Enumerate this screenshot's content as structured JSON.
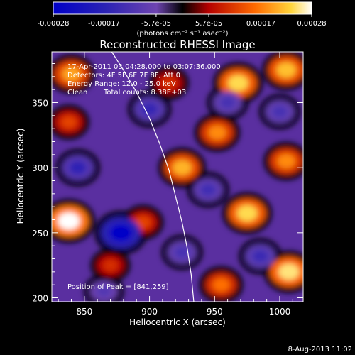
{
  "colorbar": {
    "ticks": [
      "-0.00028",
      "-0.00017",
      "-5.7e-05",
      "5.7e-05",
      "0.00017",
      "0.00028"
    ],
    "values": [
      -0.00028,
      -0.00017,
      -5.7e-05,
      5.7e-05,
      0.00017,
      0.00028
    ],
    "range": [
      -0.00028,
      0.00028
    ],
    "units": "(photons cm⁻² s⁻¹ asec⁻²)"
  },
  "chart_data": {
    "type": "heatmap",
    "title": "Reconstructed RHESSI Image",
    "xlabel": "Heliocentric X (arcsec)",
    "ylabel": "Heliocentric Y (arcsec)",
    "xlim": [
      825,
      1018
    ],
    "ylim": [
      197,
      389
    ],
    "xticks": [
      850,
      900,
      950,
      1000
    ],
    "yticks": [
      200,
      250,
      300,
      350
    ],
    "annotations": {
      "time": "17-Apr-2011 03:04:28.000 to 03:07:36.000",
      "detectors": "Detectors: 4F 5F 6F 7F 8F, Att 0",
      "energy": "Energy Range: 12.0 - 25.0 keV",
      "method": "Clean",
      "counts": "Total counts: 8.38E+03",
      "peak": "Position of Peak = [841,259]"
    },
    "limb": [
      [
        871,
        389
      ],
      [
        880,
        375
      ],
      [
        890,
        358
      ],
      [
        900,
        338
      ],
      [
        908,
        318
      ],
      [
        915,
        298
      ],
      [
        920,
        278
      ],
      [
        925,
        258
      ],
      [
        929,
        238
      ],
      [
        932,
        218
      ],
      [
        934,
        197
      ]
    ],
    "blobs": [
      {
        "x": 838,
        "y": 259,
        "v": 0.00028
      },
      {
        "x": 840,
        "y": 372,
        "v": 0.0002
      },
      {
        "x": 838,
        "y": 335,
        "v": 0.00012
      },
      {
        "x": 895,
        "y": 258,
        "v": 0.00012
      },
      {
        "x": 870,
        "y": 225,
        "v": 0.0001
      },
      {
        "x": 968,
        "y": 365,
        "v": 0.00024
      },
      {
        "x": 1005,
        "y": 375,
        "v": 0.00022
      },
      {
        "x": 952,
        "y": 327,
        "v": 0.00018
      },
      {
        "x": 925,
        "y": 300,
        "v": 0.00021
      },
      {
        "x": 1005,
        "y": 305,
        "v": 0.00018
      },
      {
        "x": 975,
        "y": 265,
        "v": 0.00024
      },
      {
        "x": 1007,
        "y": 220,
        "v": 0.00025
      },
      {
        "x": 955,
        "y": 210,
        "v": 0.00016
      },
      {
        "x": 915,
        "y": 365,
        "v": 0.0001
      },
      {
        "x": 878,
        "y": 250,
        "v": -0.00028
      },
      {
        "x": 845,
        "y": 300,
        "v": -0.00016
      },
      {
        "x": 900,
        "y": 345,
        "v": -0.00015
      },
      {
        "x": 960,
        "y": 350,
        "v": -0.00012
      },
      {
        "x": 945,
        "y": 283,
        "v": -0.00013
      },
      {
        "x": 1000,
        "y": 343,
        "v": -0.00012
      },
      {
        "x": 985,
        "y": 232,
        "v": -0.00014
      },
      {
        "x": 925,
        "y": 235,
        "v": -0.00012
      },
      {
        "x": 865,
        "y": 205,
        "v": -0.0001
      }
    ]
  },
  "footer": {
    "date": "8-Aug-2013 11:02"
  }
}
